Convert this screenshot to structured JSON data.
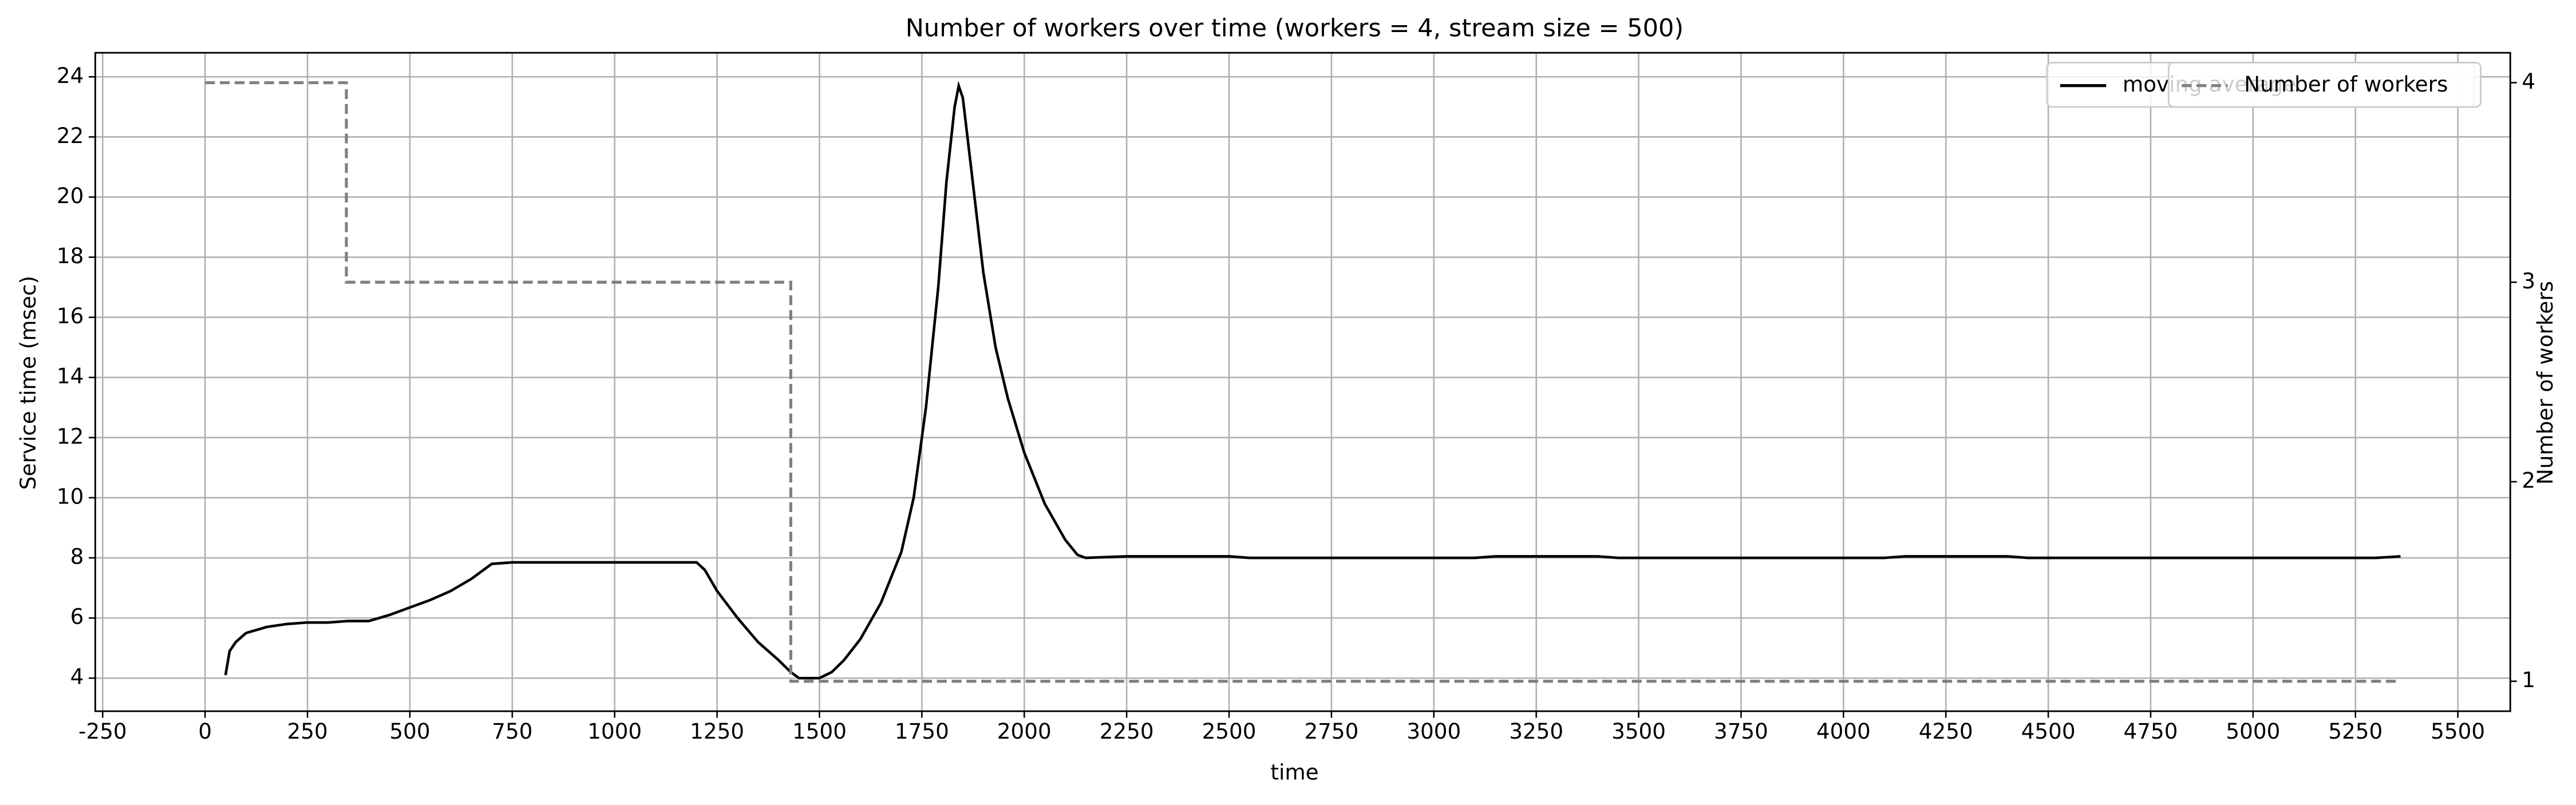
{
  "chart_data": {
    "type": "line",
    "title": "Number of workers over time (workers = 4, stream size = 500)",
    "x_label": "time",
    "y_label": "Service time (msec)",
    "y2_label": "Number of workers",
    "xlim": [
      -268,
      5628
    ],
    "xticks": [
      -250,
      0,
      250,
      500,
      750,
      1000,
      1250,
      1500,
      1750,
      2000,
      2250,
      2500,
      2750,
      3000,
      3250,
      3500,
      3750,
      4000,
      4250,
      4500,
      4750,
      5000,
      5250,
      5500
    ],
    "ylim": [
      2.9,
      24.8
    ],
    "yticks": [
      4,
      6,
      8,
      10,
      12,
      14,
      16,
      18,
      20,
      22,
      24
    ],
    "y2lim": [
      0.85,
      4.15
    ],
    "y2ticks": [
      1,
      2,
      3,
      4
    ],
    "grid": true,
    "legend": "upper right",
    "series": [
      {
        "name": "moving average",
        "color": "#000000",
        "dashed": false,
        "x": [
          50,
          60,
          75,
          100,
          125,
          150,
          200,
          250,
          300,
          350,
          400,
          450,
          500,
          550,
          600,
          650,
          700,
          750,
          1000,
          1200,
          1220,
          1250,
          1300,
          1350,
          1400,
          1430,
          1450,
          1500,
          1530,
          1560,
          1600,
          1650,
          1700,
          1730,
          1760,
          1790,
          1810,
          1830,
          1840,
          1850,
          1870,
          1900,
          1930,
          1960,
          2000,
          2050,
          2100,
          2130,
          2150,
          2250,
          2500,
          2550,
          3100,
          3150,
          3400,
          3450,
          4100,
          4150,
          4400,
          4450,
          5300,
          5360
        ],
        "values": [
          4.1,
          4.9,
          5.2,
          5.5,
          5.6,
          5.7,
          5.8,
          5.85,
          5.85,
          5.9,
          5.9,
          6.1,
          6.35,
          6.6,
          6.9,
          7.3,
          7.8,
          7.85,
          7.85,
          7.85,
          7.6,
          6.9,
          6.0,
          5.2,
          4.6,
          4.2,
          4.0,
          4.0,
          4.2,
          4.6,
          5.3,
          6.5,
          8.2,
          10.0,
          13.0,
          17.0,
          20.5,
          23.0,
          23.7,
          23.3,
          21.0,
          17.5,
          15.0,
          13.3,
          11.5,
          9.8,
          8.6,
          8.1,
          8.0,
          8.05,
          8.05,
          8.0,
          8.0,
          8.05,
          8.05,
          8.0,
          8.0,
          8.05,
          8.05,
          8.0,
          8.0,
          8.05
        ]
      },
      {
        "name": "Number of workers",
        "color": "#808080",
        "dashed": true,
        "axis": "y2",
        "x": [
          0,
          345,
          345,
          1430,
          1430,
          5360
        ],
        "values": [
          4,
          4,
          3,
          3,
          1,
          1
        ]
      }
    ]
  }
}
